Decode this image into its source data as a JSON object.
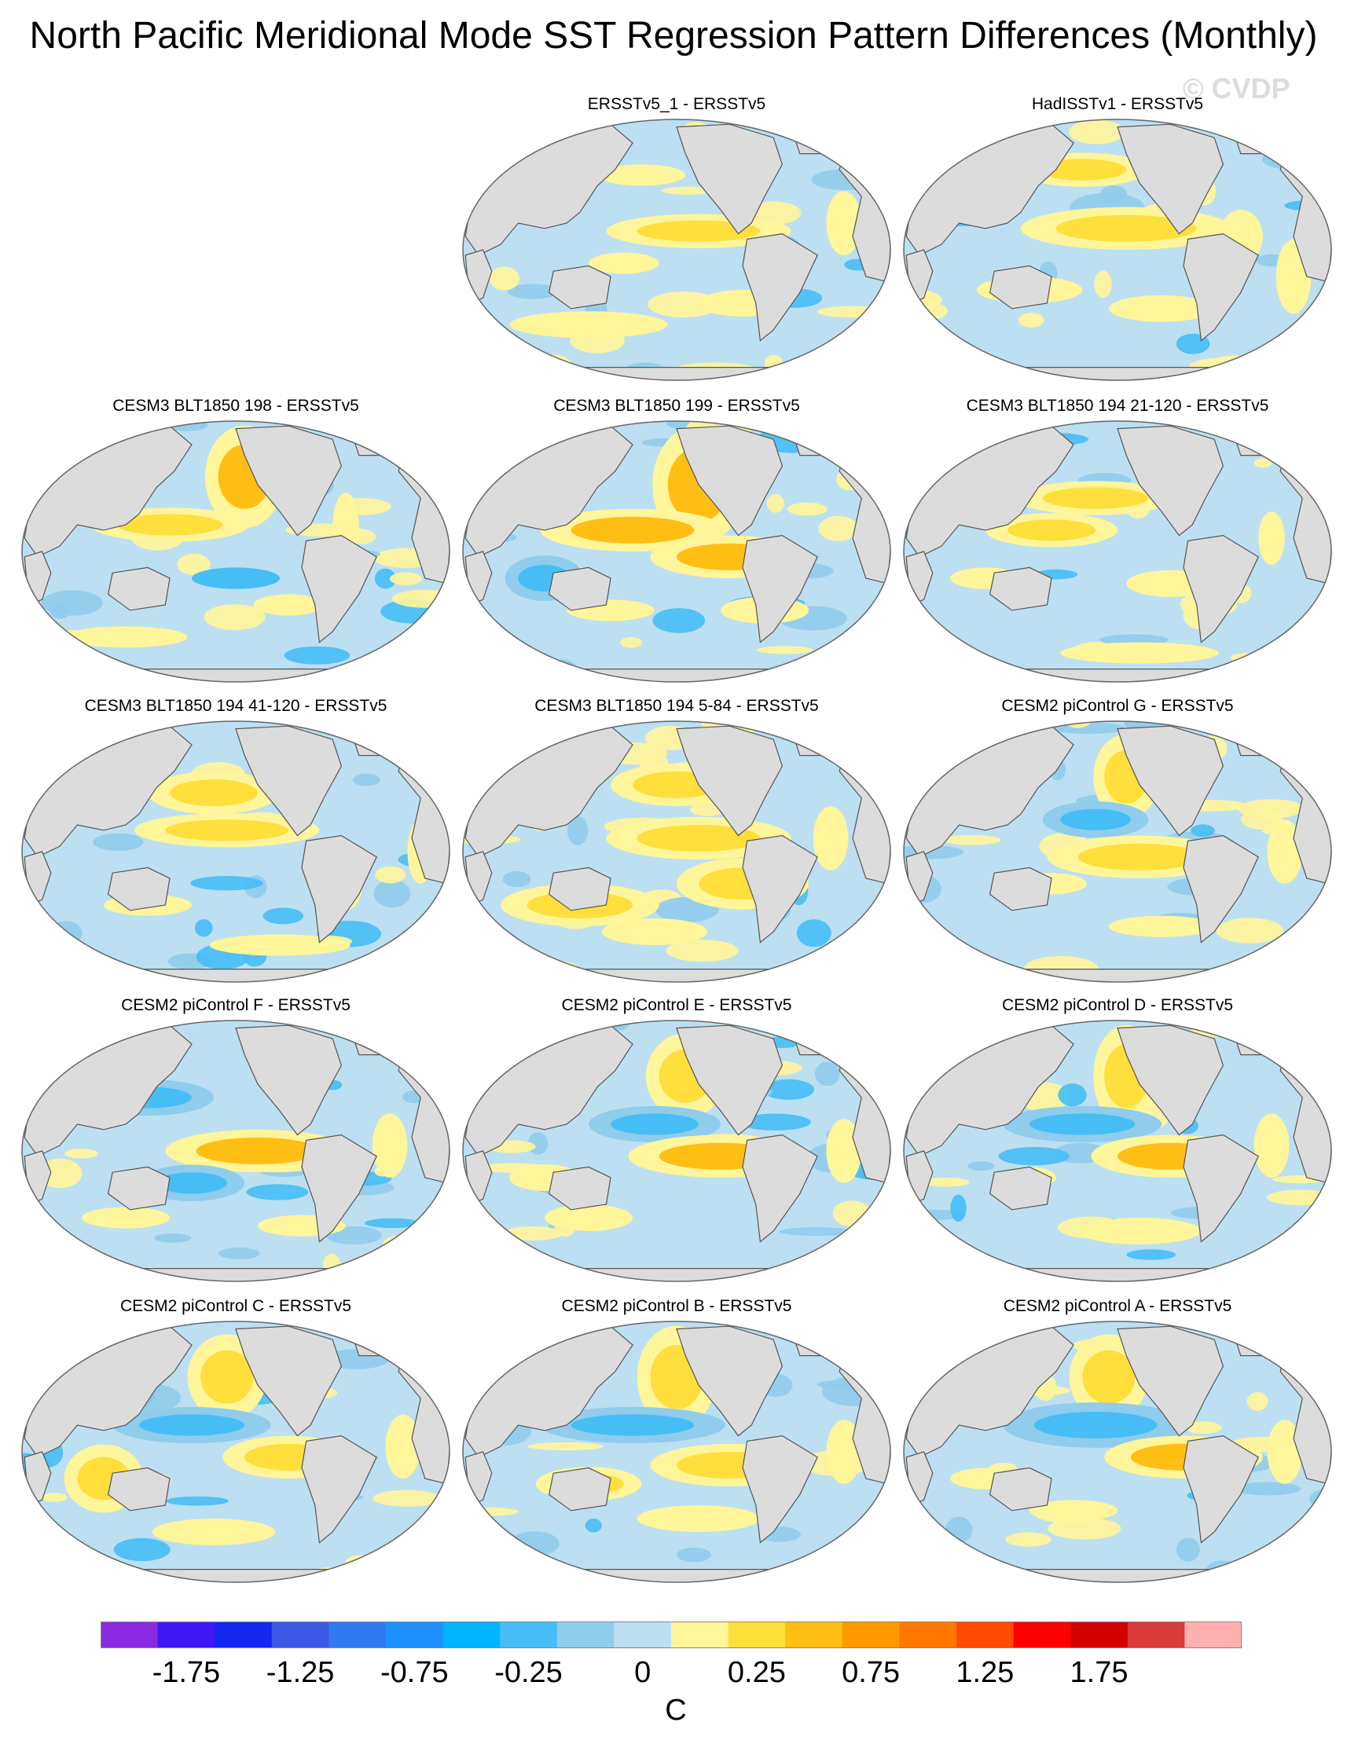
{
  "title": "North Pacific Meridional Mode SST Regression Pattern Differences (Monthly)",
  "watermark": "© CVDP",
  "panels": [
    {
      "label": "ERSSTv5_1 - ERSSTv5",
      "pattern": 0
    },
    {
      "label": "HadISSTv1 - ERSSTv5",
      "pattern": 1
    },
    {
      "label": "CESM3 BLT1850 198 - ERSSTv5",
      "pattern": 2
    },
    {
      "label": "CESM3 BLT1850 199 - ERSSTv5",
      "pattern": 3
    },
    {
      "label": "CESM3 BLT1850 194 21-120 - ERSSTv5",
      "pattern": 4
    },
    {
      "label": "CESM3 BLT1850 194 41-120 - ERSSTv5",
      "pattern": 5
    },
    {
      "label": "CESM3 BLT1850 194 5-84 - ERSSTv5",
      "pattern": 6
    },
    {
      "label": "CESM2 piControl G - ERSSTv5",
      "pattern": 7
    },
    {
      "label": "CESM2 piControl F - ERSSTv5",
      "pattern": 8
    },
    {
      "label": "CESM2 piControl E - ERSSTv5",
      "pattern": 9
    },
    {
      "label": "CESM2 piControl D - ERSSTv5",
      "pattern": 10
    },
    {
      "label": "CESM2 piControl C - ERSSTv5",
      "pattern": 11
    },
    {
      "label": "CESM2 piControl B - ERSSTv5",
      "pattern": 12
    },
    {
      "label": "CESM2 piControl A - ERSSTv5",
      "pattern": 13
    }
  ],
  "colorbar": {
    "unit": "C",
    "colors": [
      "#8a2be2",
      "#3f18f5",
      "#1428f0",
      "#3c5ae6",
      "#2f7af0",
      "#1e90ff",
      "#00b4ff",
      "#46bef5",
      "#90ccec",
      "#bcdff2",
      "#fff59a",
      "#ffdf3c",
      "#ffbe14",
      "#ff9900",
      "#ff7800",
      "#ff4a00",
      "#ff0000",
      "#d20000",
      "#d93a3a",
      "#ffb0b0"
    ],
    "tick_labels": [
      "-1.75",
      "-1.25",
      "-0.75",
      "-0.25",
      "0",
      "0.25",
      "0.75",
      "1.25",
      "1.75"
    ]
  },
  "style": {
    "land": "#dcdcdc",
    "ocean_base": "#bcdff2",
    "coast": "#555555"
  }
}
